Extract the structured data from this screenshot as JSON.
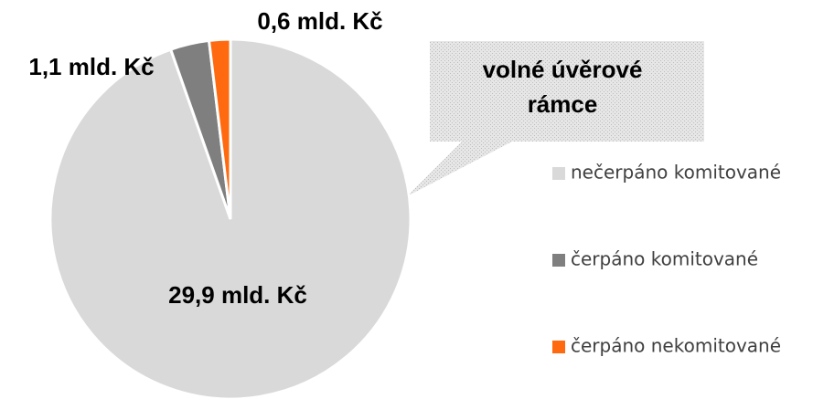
{
  "chart_data": {
    "type": "pie",
    "categories": [
      "nečerpáno komitované",
      "čerpáno komitované",
      "čerpáno nekomitované"
    ],
    "values": [
      29.9,
      1.1,
      0.6
    ],
    "value_labels": [
      "29,9 mld. Kč",
      "1,1 mld. Kč",
      "0,6 mld. Kč"
    ],
    "colors": [
      "#d9d9d9",
      "#7f7f7f",
      "#ff6a10"
    ],
    "annotation": [
      "volné úvěrové",
      "rámce"
    ],
    "legend": "right"
  }
}
